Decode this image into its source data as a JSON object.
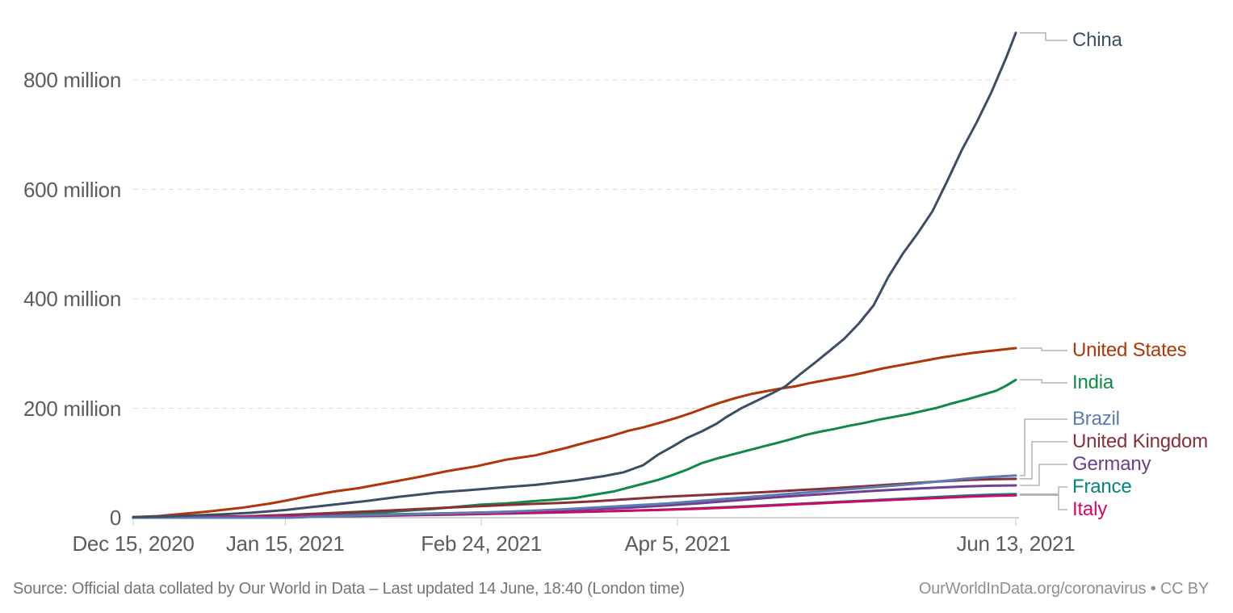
{
  "footer": {
    "source": "Source: Official data collated by Our World in Data – Last updated 14 June, 18:40 (London time)",
    "attribution": "OurWorldInData.org/coronavirus • CC BY"
  },
  "axes": {
    "y_ticks": [
      {
        "label": "0",
        "value": 0
      },
      {
        "label": "200 million",
        "value": 200
      },
      {
        "label": "400 million",
        "value": 400
      },
      {
        "label": "600 million",
        "value": 600
      },
      {
        "label": "800 million",
        "value": 800
      }
    ],
    "x_ticks": [
      {
        "label": "Dec 15, 2020",
        "day": 0
      },
      {
        "label": "Jan 15, 2021",
        "day": 31
      },
      {
        "label": "Feb 24, 2021",
        "day": 71
      },
      {
        "label": "Apr 5, 2021",
        "day": 111
      },
      {
        "label": "Jun 13, 2021",
        "day": 180
      }
    ]
  },
  "chart_data": {
    "type": "line",
    "x_unit": "days since Dec 15, 2020",
    "x_range": [
      0,
      180
    ],
    "x_tick_labels": [
      "Dec 15, 2020",
      "Jan 15, 2021",
      "Feb 24, 2021",
      "Apr 5, 2021",
      "Jun 13, 2021"
    ],
    "y_unit": "doses (millions)",
    "y_range": [
      0,
      900
    ],
    "y_tick_labels": [
      "0",
      "200 million",
      "400 million",
      "600 million",
      "800 million"
    ],
    "grid": "horizontal dashed",
    "legend_position": "right-edge line labels",
    "series": [
      {
        "name": "China",
        "color": "#3C4E66",
        "points": [
          [
            0,
            1
          ],
          [
            6,
            2
          ],
          [
            12,
            4
          ],
          [
            18,
            6
          ],
          [
            24,
            9
          ],
          [
            31,
            14
          ],
          [
            36,
            19
          ],
          [
            41,
            24
          ],
          [
            48,
            31
          ],
          [
            54,
            38
          ],
          [
            62,
            46
          ],
          [
            68,
            50
          ],
          [
            76,
            56
          ],
          [
            82,
            60
          ],
          [
            90,
            68
          ],
          [
            96,
            76
          ],
          [
            100,
            83
          ],
          [
            104,
            96
          ],
          [
            107,
            115
          ],
          [
            110,
            130
          ],
          [
            113,
            146
          ],
          [
            116,
            158
          ],
          [
            119,
            172
          ],
          [
            121,
            184
          ],
          [
            124,
            200
          ],
          [
            127,
            213
          ],
          [
            130,
            226
          ],
          [
            133,
            240
          ],
          [
            136,
            262
          ],
          [
            139,
            283
          ],
          [
            142,
            305
          ],
          [
            145,
            327
          ],
          [
            148,
            355
          ],
          [
            151,
            388
          ],
          [
            154,
            440
          ],
          [
            157,
            483
          ],
          [
            160,
            520
          ],
          [
            163,
            560
          ],
          [
            166,
            615
          ],
          [
            169,
            672
          ],
          [
            172,
            722
          ],
          [
            175,
            777
          ],
          [
            178,
            840
          ],
          [
            180,
            886
          ]
        ]
      },
      {
        "name": "United States",
        "color": "#B13507",
        "points": [
          [
            0,
            1
          ],
          [
            5,
            3
          ],
          [
            10,
            7
          ],
          [
            16,
            12
          ],
          [
            22,
            18
          ],
          [
            28,
            26
          ],
          [
            31,
            31
          ],
          [
            36,
            40
          ],
          [
            41,
            48
          ],
          [
            46,
            54
          ],
          [
            52,
            64
          ],
          [
            58,
            74
          ],
          [
            64,
            85
          ],
          [
            70,
            94
          ],
          [
            76,
            106
          ],
          [
            82,
            114
          ],
          [
            88,
            127
          ],
          [
            93,
            139
          ],
          [
            97,
            148
          ],
          [
            101,
            159
          ],
          [
            104,
            165
          ],
          [
            108,
            175
          ],
          [
            111,
            183
          ],
          [
            114,
            192
          ],
          [
            117,
            202
          ],
          [
            120,
            211
          ],
          [
            123,
            219
          ],
          [
            126,
            226
          ],
          [
            129,
            231
          ],
          [
            132,
            236
          ],
          [
            135,
            240
          ],
          [
            138,
            246
          ],
          [
            141,
            251
          ],
          [
            144,
            256
          ],
          [
            147,
            261
          ],
          [
            150,
            267
          ],
          [
            153,
            273
          ],
          [
            156,
            278
          ],
          [
            159,
            283
          ],
          [
            162,
            288
          ],
          [
            165,
            293
          ],
          [
            168,
            297
          ],
          [
            171,
            301
          ],
          [
            174,
            304
          ],
          [
            177,
            307
          ],
          [
            180,
            310
          ]
        ]
      },
      {
        "name": "India",
        "color": "#0E8A46",
        "points": [
          [
            0,
            0
          ],
          [
            30,
            0
          ],
          [
            33,
            1.5
          ],
          [
            37,
            3.5
          ],
          [
            41,
            5
          ],
          [
            46,
            7.5
          ],
          [
            51,
            10
          ],
          [
            56,
            13
          ],
          [
            61,
            16
          ],
          [
            66,
            20
          ],
          [
            71,
            24
          ],
          [
            76,
            26
          ],
          [
            81,
            30
          ],
          [
            86,
            33
          ],
          [
            90,
            36
          ],
          [
            94,
            42
          ],
          [
            98,
            48
          ],
          [
            101,
            55
          ],
          [
            104,
            62
          ],
          [
            107,
            69
          ],
          [
            110,
            78
          ],
          [
            113,
            88
          ],
          [
            116,
            100
          ],
          [
            119,
            108
          ],
          [
            122,
            115
          ],
          [
            125,
            122
          ],
          [
            128,
            129
          ],
          [
            131,
            136
          ],
          [
            134,
            143
          ],
          [
            137,
            151
          ],
          [
            140,
            157
          ],
          [
            143,
            162
          ],
          [
            146,
            168
          ],
          [
            149,
            173
          ],
          [
            152,
            179
          ],
          [
            155,
            184
          ],
          [
            158,
            189
          ],
          [
            161,
            195
          ],
          [
            164,
            201
          ],
          [
            167,
            209
          ],
          [
            170,
            216
          ],
          [
            173,
            224
          ],
          [
            176,
            232
          ],
          [
            178,
            241
          ],
          [
            180,
            252
          ]
        ]
      },
      {
        "name": "Brazil",
        "color": "#5D7AB5",
        "points": [
          [
            0,
            0
          ],
          [
            32,
            0
          ],
          [
            36,
            1.5
          ],
          [
            41,
            3
          ],
          [
            47,
            4.5
          ],
          [
            53,
            5.8
          ],
          [
            60,
            7
          ],
          [
            67,
            8.5
          ],
          [
            74,
            10
          ],
          [
            81,
            12.5
          ],
          [
            88,
            15.5
          ],
          [
            95,
            19
          ],
          [
            102,
            22.5
          ],
          [
            109,
            26
          ],
          [
            116,
            31
          ],
          [
            123,
            36
          ],
          [
            130,
            41
          ],
          [
            135,
            44.5
          ],
          [
            140,
            48
          ],
          [
            145,
            51.5
          ],
          [
            150,
            55
          ],
          [
            155,
            58.5
          ],
          [
            160,
            62.5
          ],
          [
            165,
            67
          ],
          [
            170,
            71.5
          ],
          [
            175,
            74.5
          ],
          [
            180,
            77
          ]
        ]
      },
      {
        "name": "United Kingdom",
        "color": "#883039",
        "points": [
          [
            0,
            0.6
          ],
          [
            8,
            1
          ],
          [
            16,
            1.6
          ],
          [
            23,
            2.6
          ],
          [
            31,
            5
          ],
          [
            38,
            7.6
          ],
          [
            45,
            10.3
          ],
          [
            52,
            13.2
          ],
          [
            59,
            16.2
          ],
          [
            66,
            19.2
          ],
          [
            73,
            22
          ],
          [
            80,
            24.6
          ],
          [
            87,
            27
          ],
          [
            94,
            30
          ],
          [
            101,
            34
          ],
          [
            108,
            38
          ],
          [
            115,
            41
          ],
          [
            122,
            44
          ],
          [
            129,
            47
          ],
          [
            136,
            50.5
          ],
          [
            143,
            54
          ],
          [
            150,
            58
          ],
          [
            157,
            62
          ],
          [
            164,
            66
          ],
          [
            170,
            68.8
          ],
          [
            175,
            70.2
          ],
          [
            180,
            71
          ]
        ]
      },
      {
        "name": "Germany",
        "color": "#6D3E91",
        "points": [
          [
            0,
            0
          ],
          [
            10,
            0.7
          ],
          [
            17,
            1.2
          ],
          [
            24,
            1.9
          ],
          [
            31,
            2.7
          ],
          [
            38,
            3.7
          ],
          [
            45,
            4.9
          ],
          [
            52,
            6
          ],
          [
            59,
            7.3
          ],
          [
            66,
            8.6
          ],
          [
            73,
            10.1
          ],
          [
            80,
            11.8
          ],
          [
            87,
            13.6
          ],
          [
            94,
            15.8
          ],
          [
            101,
            18.3
          ],
          [
            108,
            22
          ],
          [
            115,
            26
          ],
          [
            122,
            31
          ],
          [
            129,
            36
          ],
          [
            136,
            40.5
          ],
          [
            143,
            44.5
          ],
          [
            150,
            48.5
          ],
          [
            157,
            52
          ],
          [
            164,
            55
          ],
          [
            170,
            57.3
          ],
          [
            175,
            58.4
          ],
          [
            180,
            59
          ]
        ]
      },
      {
        "name": "France",
        "color": "#00847E",
        "points": [
          [
            0,
            0
          ],
          [
            10,
            0.2
          ],
          [
            17,
            0.6
          ],
          [
            24,
            1
          ],
          [
            31,
            1.5
          ],
          [
            38,
            2.2
          ],
          [
            45,
            2.9
          ],
          [
            52,
            3.7
          ],
          [
            59,
            4.7
          ],
          [
            66,
            5.7
          ],
          [
            73,
            6.9
          ],
          [
            80,
            8.2
          ],
          [
            87,
            9.6
          ],
          [
            94,
            11.1
          ],
          [
            101,
            12.7
          ],
          [
            108,
            14.6
          ],
          [
            115,
            17
          ],
          [
            122,
            19.7
          ],
          [
            129,
            22.6
          ],
          [
            136,
            25.6
          ],
          [
            143,
            28.6
          ],
          [
            150,
            31.6
          ],
          [
            157,
            34.7
          ],
          [
            164,
            37.8
          ],
          [
            170,
            40.4
          ],
          [
            175,
            42
          ],
          [
            180,
            43.2
          ]
        ]
      },
      {
        "name": "Italy",
        "color": "#CF0A66",
        "points": [
          [
            0,
            0
          ],
          [
            10,
            0.5
          ],
          [
            17,
            1
          ],
          [
            24,
            1.6
          ],
          [
            31,
            2.1
          ],
          [
            38,
            2.8
          ],
          [
            45,
            3.5
          ],
          [
            52,
            4.3
          ],
          [
            59,
            5.3
          ],
          [
            66,
            6.3
          ],
          [
            73,
            7.4
          ],
          [
            80,
            8.7
          ],
          [
            87,
            10
          ],
          [
            94,
            11.4
          ],
          [
            101,
            12.8
          ],
          [
            108,
            14.3
          ],
          [
            115,
            16.2
          ],
          [
            122,
            18.7
          ],
          [
            129,
            21.6
          ],
          [
            136,
            24.6
          ],
          [
            143,
            27.6
          ],
          [
            150,
            30.5
          ],
          [
            157,
            33.4
          ],
          [
            164,
            36
          ],
          [
            170,
            38.4
          ],
          [
            175,
            39.9
          ],
          [
            180,
            41
          ]
        ]
      }
    ]
  }
}
